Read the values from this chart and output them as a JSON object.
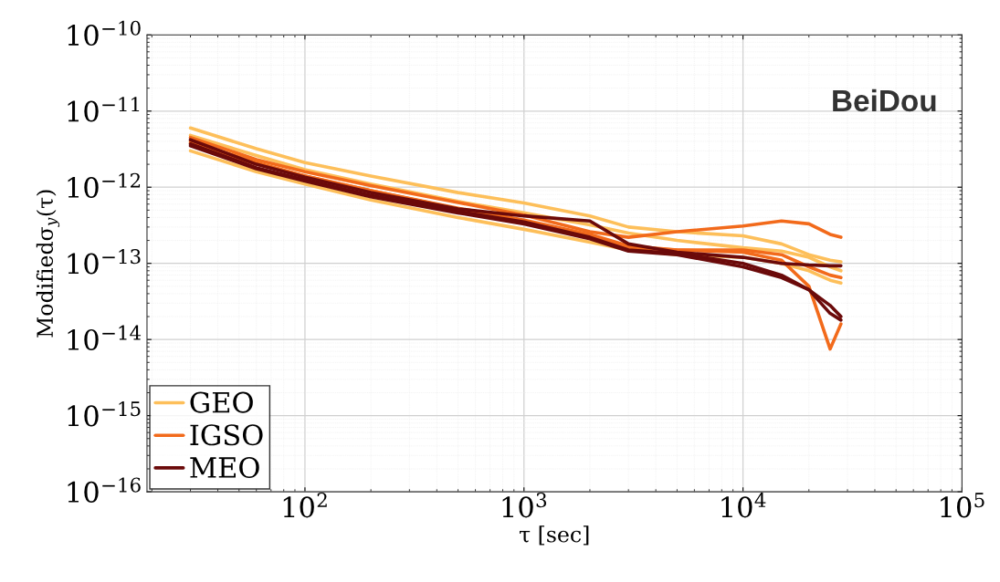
{
  "chart_data": {
    "type": "line",
    "xlabel": "τ [sec]",
    "ylabel": "Modifiedσ$_{y}$(τ)",
    "annotations": [
      "BeiDou"
    ],
    "x": [
      30,
      60,
      100,
      200,
      500,
      1000,
      2000,
      3000,
      5000,
      10000,
      15000,
      20000,
      25000,
      28000
    ],
    "log": "xy",
    "grid": true,
    "legend": "bottom left",
    "marker": "none",
    "line_style": "solid",
    "xlim": [
      19,
      100000
    ],
    "xticks": [
      {
        "value": 100,
        "label": "10$^{2}$"
      },
      {
        "value": 1000,
        "label": "10$^{3}$"
      },
      {
        "value": 10000,
        "label": "10$^{4}$"
      },
      {
        "value": 100000,
        "label": "10$^{5}$"
      }
    ],
    "ylim": [
      1e-16,
      1e-10
    ],
    "yticks": [
      {
        "value": 1e-16,
        "label": "10$^{−16}$"
      },
      {
        "value": 1e-15,
        "label": "10$^{−15}$"
      },
      {
        "value": 1e-14,
        "label": "10$^{−14}$"
      },
      {
        "value": 1e-13,
        "label": "10$^{−13}$"
      },
      {
        "value": 1e-12,
        "label": "10$^{−12}$"
      },
      {
        "value": 1e-11,
        "label": "10$^{−11}$"
      },
      {
        "value": 1e-10,
        "label": "10$^{−10}$"
      }
    ],
    "series": [
      {
        "name": "GEO",
        "color": "#fdbf5a",
        "values": [
          6e-12,
          3.2e-12,
          2.1e-12,
          1.4e-12,
          8.5e-13,
          6.2e-13,
          4.2e-13,
          3e-13,
          2.6e-13,
          2.3e-13,
          1.8e-13,
          1.3e-13,
          1.1e-13,
          1.05e-13
        ]
      },
      {
        "color": "#fdbf5a",
        "values": [
          3e-12,
          1.6e-12,
          1.1e-12,
          6.8e-13,
          4e-13,
          2.8e-13,
          1.9e-13,
          1.5e-13,
          1.3e-13,
          1.2e-13,
          1e-13,
          8e-14,
          6e-14,
          5.5e-14
        ]
      },
      {
        "color": "#fdbf5a",
        "values": [
          4.8e-12,
          2.6e-12,
          1.7e-12,
          1.1e-12,
          6.5e-13,
          4.6e-13,
          3.2e-13,
          2.5e-13,
          2e-13,
          1.6e-13,
          1.45e-13,
          1.2e-13,
          9e-14,
          8e-14
        ]
      },
      {
        "name": "IGSO",
        "color": "#f26a1b",
        "values": [
          4.5e-12,
          2.3e-12,
          1.6e-12,
          1.05e-12,
          6.3e-13,
          4.3e-13,
          2.6e-13,
          2.2e-13,
          2.6e-13,
          3.1e-13,
          3.6e-13,
          3.3e-13,
          2.4e-13,
          2.2e-13
        ]
      },
      {
        "color": "#f26a1b",
        "values": [
          3.8e-12,
          2e-12,
          1.4e-12,
          9e-13,
          5.3e-13,
          3.7e-13,
          2.4e-13,
          1.7e-13,
          1.5e-13,
          1.4e-13,
          1.1e-13,
          5e-14,
          7.5e-15,
          1.6e-14
        ]
      },
      {
        "color": "#f26a1b",
        "values": [
          4e-12,
          2.1e-12,
          1.4e-12,
          9e-13,
          5.2e-13,
          3.6e-13,
          2.3e-13,
          1.6e-13,
          1.5e-13,
          1.5e-13,
          1.3e-13,
          9e-14,
          7e-14,
          6.5e-14
        ]
      },
      {
        "name": "MEO",
        "color": "#6b0a0a",
        "values": [
          4.2e-12,
          2e-12,
          1.35e-12,
          8.5e-13,
          5.2e-13,
          4.2e-13,
          3.6e-13,
          1.8e-13,
          1.4e-13,
          1.2e-13,
          1e-13,
          9.5e-14,
          9.3e-14,
          9.3e-14
        ]
      },
      {
        "color": "#6b0a0a",
        "values": [
          3.7e-12,
          1.8e-12,
          1.25e-12,
          7.8e-13,
          4.8e-13,
          3.5e-13,
          2.2e-13,
          1.5e-13,
          1.35e-13,
          1e-13,
          7e-14,
          4.5e-14,
          2.8e-14,
          2e-14
        ]
      },
      {
        "color": "#6b0a0a",
        "values": [
          3.5e-12,
          1.75e-12,
          1.2e-12,
          7.5e-13,
          4.6e-13,
          3.3e-13,
          2.1e-13,
          1.45e-13,
          1.3e-13,
          9e-14,
          6.5e-14,
          4.5e-14,
          2.2e-14,
          1.8e-14
        ]
      }
    ]
  }
}
